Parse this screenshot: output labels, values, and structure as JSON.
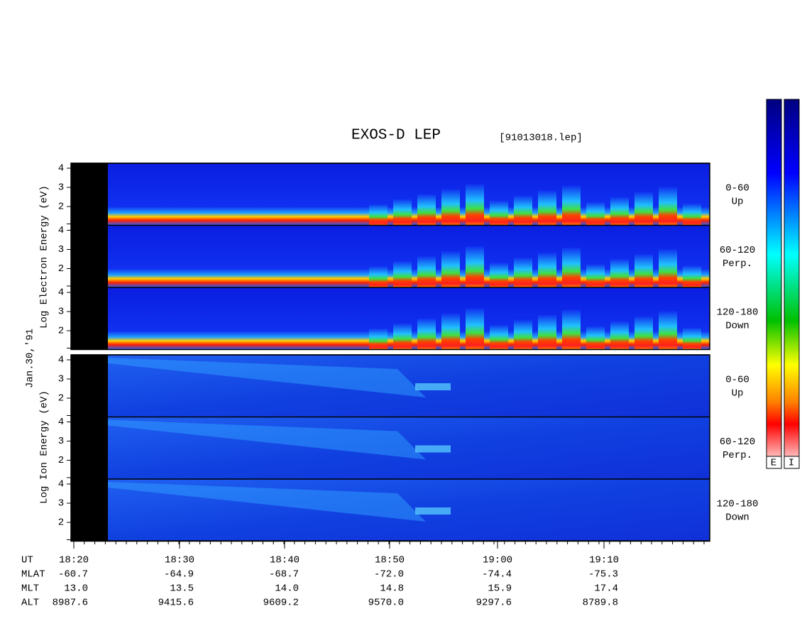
{
  "title": "EXOS-D LEP",
  "file": "[91013018.lep]",
  "date": "Jan.30,'91",
  "electron": {
    "axis_label": "Log  Electron  Energy (eV)",
    "panels": [
      {
        "range": "0-60",
        "direction": "Up",
        "ticks": [
          "4",
          "3",
          "2"
        ]
      },
      {
        "range": "60-120",
        "direction": "Perp.",
        "ticks": [
          "4",
          "3",
          "2"
        ]
      },
      {
        "range": "120-180",
        "direction": "Down",
        "ticks": [
          "4",
          "3",
          "2"
        ]
      }
    ]
  },
  "ion": {
    "axis_label": "Log  Ion  Energy (eV)",
    "panels": [
      {
        "range": "0-60",
        "direction": "Up",
        "ticks": [
          "4",
          "3",
          "2"
        ]
      },
      {
        "range": "60-120",
        "direction": "Perp.",
        "ticks": [
          "4",
          "3",
          "2"
        ]
      },
      {
        "range": "120-180",
        "direction": "Down",
        "ticks": [
          "4",
          "3",
          "2"
        ]
      }
    ]
  },
  "colorbar": {
    "labels": [
      "E",
      "I"
    ]
  },
  "footer": {
    "rows": [
      {
        "name": "UT",
        "values": [
          "18:20",
          "18:30",
          "18:40",
          "18:50",
          "19:00",
          "19:10"
        ]
      },
      {
        "name": "MLAT",
        "values": [
          "-60.7",
          "-64.9",
          "-68.7",
          "-72.0",
          "-74.4",
          "-75.3"
        ]
      },
      {
        "name": "MLT",
        "values": [
          "13.0",
          "13.5",
          "14.0",
          "14.8",
          "15.9",
          "17.4"
        ]
      },
      {
        "name": "ALT",
        "values": [
          "8987.6",
          "9415.6",
          "9609.2",
          "9570.0",
          "9297.6",
          "8789.8"
        ]
      }
    ]
  }
}
